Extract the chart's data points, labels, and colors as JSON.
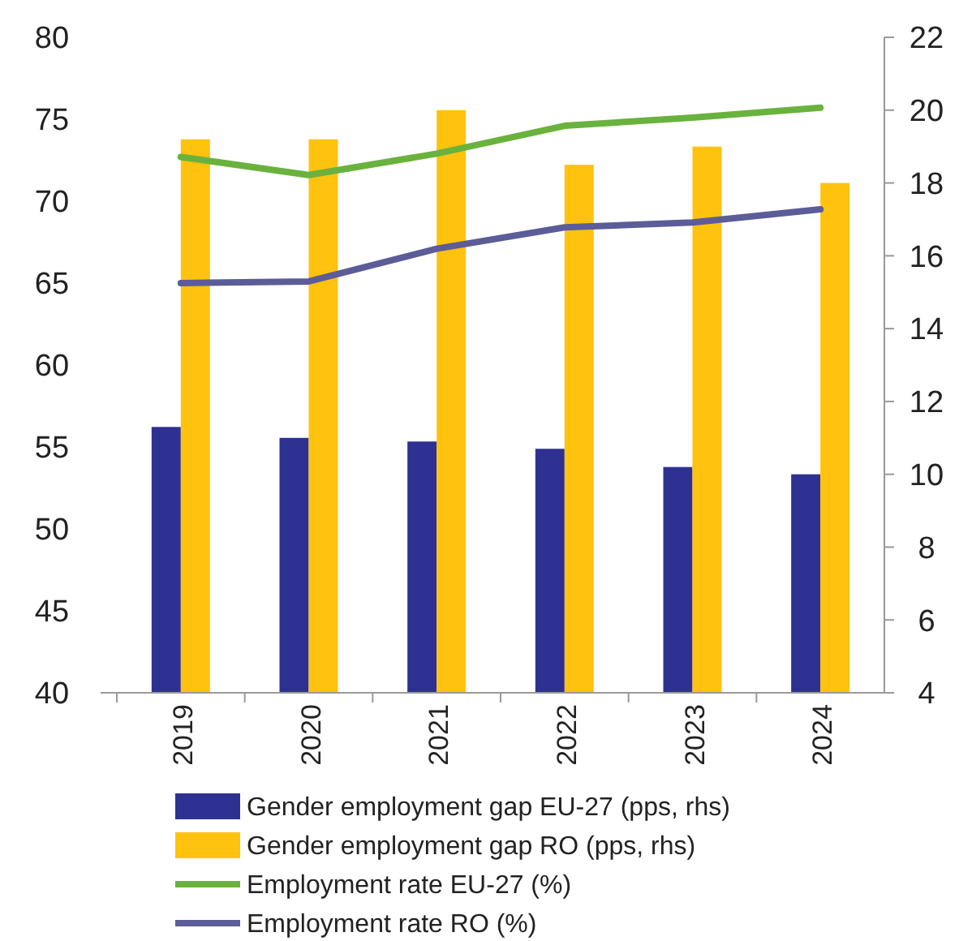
{
  "chart_data": {
    "type": "bar",
    "categories": [
      "2019",
      "2020",
      "2021",
      "2022",
      "2023",
      "2024"
    ],
    "series": [
      {
        "name": "Gender employment gap EU-27 (pps, rhs)",
        "color": "#2e3192",
        "values": [
          11.3,
          11.0,
          10.9,
          10.7,
          10.2,
          10.0
        ],
        "axis": "y2"
      },
      {
        "name": "Gender employment gap RO (pps, rhs)",
        "color": "#ffc20e",
        "values": [
          19.2,
          19.2,
          20.0,
          18.5,
          19.0,
          18.0
        ],
        "axis": "y2"
      },
      {
        "name": "Employment rate EU-27 (%)",
        "type": "line",
        "color": "#6ab23e",
        "values": [
          72.7,
          71.6,
          72.9,
          74.6,
          75.1,
          75.7
        ]
      },
      {
        "name": "Employment rate RO (%)",
        "type": "line",
        "color": "#5c5c98",
        "values": [
          65.0,
          65.1,
          67.1,
          68.4,
          68.7,
          69.5
        ]
      }
    ],
    "ylim": [
      40,
      80
    ],
    "yticks": [
      40,
      45,
      50,
      55,
      60,
      65,
      70,
      75,
      80
    ],
    "y2lim": [
      4,
      22
    ],
    "y2ticks": [
      4,
      6,
      8,
      10,
      12,
      14,
      16,
      18,
      20,
      22
    ],
    "legend": "bottom",
    "grid": false
  }
}
